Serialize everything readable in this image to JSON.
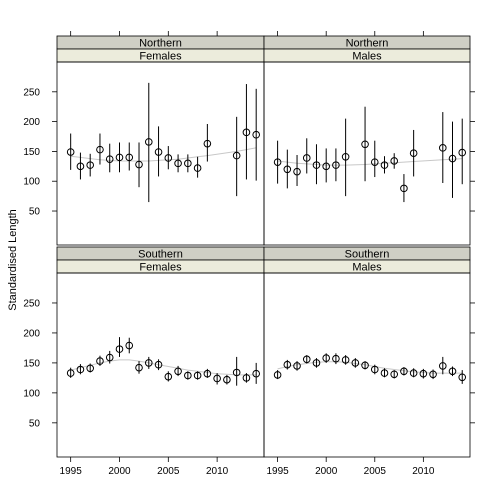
{
  "chart_data": {
    "type": "scatter",
    "ylabel": "Standardised Length",
    "xlim": [
      1993.6,
      2014.8
    ],
    "ylim": [
      -7,
      300
    ],
    "x_ticks": [
      1995,
      2000,
      2005,
      2010
    ],
    "y_ticks": [
      50,
      100,
      150,
      200,
      250
    ],
    "grid": false,
    "colors": {
      "strip_outer": "#cfcfc5",
      "strip_inner": "#ececdc",
      "points": "#000000",
      "error_bars": "#000000",
      "smooth": "#c8c8c8"
    },
    "panels": [
      {
        "region": "Northern",
        "sex": "Females",
        "row": 0,
        "col": 0,
        "x": [
          1995,
          1996,
          1997,
          1998,
          1999,
          2000,
          2001,
          2002,
          2003,
          2004,
          2005,
          2006,
          2007,
          2008,
          2009,
          2012,
          2013,
          2014
        ],
        "y": [
          149,
          125,
          127,
          153,
          137,
          140,
          140,
          128,
          166,
          149,
          139,
          130,
          130,
          122,
          163,
          143,
          182,
          178
        ],
        "lower": [
          119,
          103,
          108,
          128,
          115,
          115,
          118,
          90,
          65,
          108,
          120,
          115,
          115,
          106,
          133,
          75,
          103,
          101
        ],
        "upper": [
          180,
          148,
          146,
          180,
          163,
          165,
          165,
          165,
          265,
          192,
          159,
          145,
          145,
          141,
          196,
          208,
          263,
          255
        ],
        "smooth_y": [
          142,
          140,
          138,
          136,
          135,
          134,
          134,
          134,
          134,
          135,
          136,
          137,
          139,
          141,
          143,
          150,
          153,
          156
        ]
      },
      {
        "region": "Northern",
        "sex": "Males",
        "row": 0,
        "col": 1,
        "x": [
          1995,
          1996,
          1997,
          1998,
          1999,
          2000,
          2001,
          2002,
          2004,
          2005,
          2006,
          2007,
          2008,
          2009,
          2012,
          2013,
          2014
        ],
        "y": [
          132,
          120,
          116,
          139,
          127,
          125,
          127,
          141,
          162,
          132,
          127,
          134,
          88,
          147,
          156,
          138,
          148
        ],
        "lower": [
          96,
          88,
          92,
          113,
          95,
          98,
          100,
          75,
          100,
          107,
          113,
          121,
          65,
          108,
          97,
          72,
          95
        ],
        "upper": [
          168,
          153,
          144,
          172,
          162,
          155,
          155,
          205,
          225,
          168,
          142,
          147,
          112,
          186,
          216,
          200,
          205
        ],
        "smooth_y": [
          134,
          132,
          130,
          129,
          128,
          127,
          127,
          127,
          128,
          129,
          130,
          131,
          132,
          133,
          136,
          137,
          138
        ]
      },
      {
        "region": "Southern",
        "sex": "Females",
        "row": 1,
        "col": 0,
        "x": [
          1995,
          1996,
          1997,
          1998,
          1999,
          2000,
          2001,
          2002,
          2003,
          2004,
          2005,
          2006,
          2007,
          2008,
          2009,
          2010,
          2011,
          2012,
          2013,
          2014
        ],
        "y": [
          133,
          139,
          141,
          153,
          159,
          173,
          179,
          142,
          150,
          147,
          127,
          136,
          129,
          129,
          132,
          124,
          122,
          134,
          125,
          132
        ],
        "lower": [
          125,
          131,
          134,
          145,
          149,
          160,
          166,
          132,
          140,
          138,
          119,
          128,
          122,
          122,
          125,
          114,
          114,
          112,
          117,
          115
        ],
        "upper": [
          142,
          148,
          149,
          162,
          170,
          193,
          192,
          153,
          160,
          156,
          136,
          145,
          136,
          136,
          140,
          133,
          130,
          160,
          133,
          150
        ],
        "smooth_y": [
          138,
          142,
          146,
          150,
          153,
          155,
          155,
          153,
          150,
          147,
          144,
          141,
          138,
          136,
          134,
          132,
          131,
          130,
          130,
          130
        ]
      },
      {
        "region": "Southern",
        "sex": "Males",
        "row": 1,
        "col": 1,
        "x": [
          1995,
          1996,
          1997,
          1998,
          1999,
          2000,
          2001,
          2002,
          2003,
          2004,
          2005,
          2006,
          2007,
          2008,
          2009,
          2010,
          2011,
          2012,
          2013,
          2014
        ],
        "y": [
          130,
          147,
          145,
          156,
          150,
          158,
          157,
          155,
          150,
          146,
          139,
          133,
          131,
          136,
          133,
          132,
          131,
          145,
          136,
          126
        ],
        "lower": [
          123,
          139,
          137,
          149,
          142,
          150,
          148,
          147,
          142,
          139,
          131,
          126,
          124,
          129,
          126,
          124,
          123,
          131,
          128,
          115
        ],
        "upper": [
          138,
          155,
          153,
          163,
          158,
          166,
          166,
          163,
          158,
          153,
          147,
          141,
          138,
          143,
          141,
          140,
          139,
          160,
          144,
          138
        ],
        "smooth_y": [
          140,
          144,
          147,
          149,
          151,
          152,
          152,
          151,
          149,
          147,
          144,
          141,
          139,
          137,
          135,
          134,
          133,
          133,
          133,
          133
        ]
      }
    ]
  }
}
